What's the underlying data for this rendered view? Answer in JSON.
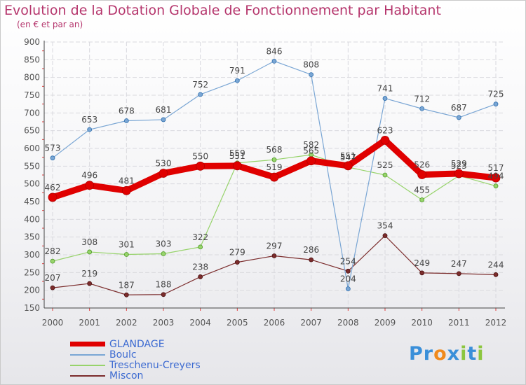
{
  "title": "Evolution de la Dotation Globale de Fonctionnement par Habitant",
  "subtitle": "(en € et par an)",
  "logo": {
    "parts": [
      "Pr",
      "o",
      "x",
      "i",
      "t",
      "i"
    ],
    "colors": [
      "#3a8fd9",
      "#f08a1c",
      "#3a8fd9",
      "#8cc63f",
      "#3a8fd9",
      "#8cc63f"
    ]
  },
  "chart_data": {
    "type": "line",
    "categories": [
      "2000",
      "2001",
      "2002",
      "2003",
      "2004",
      "2005",
      "2006",
      "2007",
      "2008",
      "2009",
      "2010",
      "2011",
      "2012"
    ],
    "ylim": [
      150,
      900
    ],
    "yticks": [
      150,
      200,
      250,
      300,
      350,
      400,
      450,
      500,
      550,
      600,
      650,
      700,
      750,
      800,
      850,
      900
    ],
    "grid": true,
    "legend_position": "bottom-left",
    "series": [
      {
        "name": "GLANDAGE",
        "color": "#e00000",
        "values": [
          462,
          496,
          481,
          530,
          550,
          551,
          519,
          565,
          551,
          623,
          526,
          529,
          517
        ]
      },
      {
        "name": "Boulc",
        "color": "#7aa6d4",
        "values": [
          573,
          653,
          678,
          681,
          752,
          791,
          846,
          808,
          204,
          741,
          712,
          687,
          725
        ]
      },
      {
        "name": "Treschenu-Creyers",
        "color": "#97d36b",
        "values": [
          282,
          308,
          301,
          303,
          322,
          559,
          568,
          582,
          547,
          525,
          455,
          523,
          494
        ]
      },
      {
        "name": "Miscon",
        "color": "#7b2c2c",
        "values": [
          207,
          219,
          187,
          188,
          238,
          279,
          297,
          286,
          254,
          354,
          249,
          247,
          244
        ]
      }
    ]
  }
}
